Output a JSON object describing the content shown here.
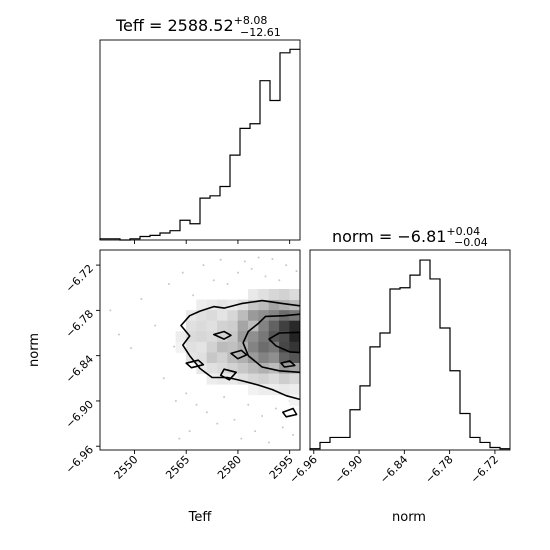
{
  "figure": {
    "background": "#ffffff",
    "line_color": "#000000"
  },
  "chart_data": [
    {
      "panel": "teff-marginal",
      "type": "histogram",
      "title": {
        "prefix": "Teff = ",
        "value": "2588.52",
        "plus": "+8.08",
        "minus": "−12.61"
      },
      "xlim": [
        2540,
        2598
      ],
      "bin_edges": [
        2540.0,
        2542.9,
        2545.8,
        2548.7,
        2551.6,
        2554.5,
        2557.4,
        2560.3,
        2563.2,
        2566.1,
        2569.0,
        2571.9,
        2574.8,
        2577.7,
        2580.6,
        2583.5,
        2586.4,
        2589.3,
        2592.2,
        2595.1,
        2598.0
      ],
      "counts": [
        1,
        1,
        0,
        1,
        3,
        4,
        6,
        8,
        17,
        14,
        36,
        38,
        46,
        73,
        96,
        100,
        137,
        120,
        161,
        164
      ],
      "ylim": [
        0,
        172
      ],
      "show_x_ticklabels": false,
      "show_y_ticks": false
    },
    {
      "panel": "norm-marginal",
      "type": "histogram",
      "title": {
        "prefix": "norm = ",
        "value": "−6.81",
        "plus": "+0.04",
        "minus": "−0.04"
      },
      "xlim": [
        -6.965,
        -6.7
      ],
      "bin_edges": [
        -6.965,
        -6.95175,
        -6.9385,
        -6.92525,
        -6.912,
        -6.89875,
        -6.8855,
        -6.87225,
        -6.859,
        -6.84575,
        -6.8325,
        -6.81925,
        -6.806,
        -6.79275,
        -6.7795,
        -6.76625,
        -6.753,
        -6.73975,
        -6.7265,
        -6.71325,
        -6.7
      ],
      "counts": [
        1,
        6,
        10,
        10,
        32,
        51,
        82,
        93,
        128,
        129,
        139,
        151,
        136,
        97,
        63,
        29,
        10,
        6,
        2,
        1
      ],
      "ylim": [
        0,
        159
      ],
      "xlabel": "norm",
      "xticks": [
        -6.96,
        -6.9,
        -6.84,
        -6.78,
        -6.72
      ],
      "xtick_labels": [
        "−6.96",
        "−6.90",
        "−6.84",
        "−6.78",
        "−6.72"
      ],
      "show_y_ticks": false
    },
    {
      "panel": "joint",
      "type": "heatmap",
      "xlabel": "Teff",
      "ylabel": "norm",
      "xlim": [
        2540,
        2598
      ],
      "ylim": [
        -6.965,
        -6.7
      ],
      "xticks": [
        2550,
        2565,
        2580,
        2595
      ],
      "xtick_labels": [
        "2550",
        "2565",
        "2580",
        "2595"
      ],
      "yticks": [
        -6.96,
        -6.9,
        -6.84,
        -6.78,
        -6.72
      ],
      "ytick_labels": [
        "−6.96",
        "−6.90",
        "−6.84",
        "−6.78",
        "−6.72"
      ],
      "cells": [
        {
          "x": 2569.5,
          "y": -6.773,
          "v": 0.08
        },
        {
          "x": 2572.5,
          "y": -6.773,
          "v": 0.1
        },
        {
          "x": 2575.5,
          "y": -6.773,
          "v": 0.12
        },
        {
          "x": 2578.5,
          "y": -6.773,
          "v": 0.1
        },
        {
          "x": 2581.5,
          "y": -6.773,
          "v": 0.14
        },
        {
          "x": 2584.5,
          "y": -6.773,
          "v": 0.25
        },
        {
          "x": 2587.5,
          "y": -6.773,
          "v": 0.3
        },
        {
          "x": 2590.5,
          "y": -6.773,
          "v": 0.4
        },
        {
          "x": 2593.5,
          "y": -6.773,
          "v": 0.35
        },
        {
          "x": 2596.5,
          "y": -6.773,
          "v": 0.3
        },
        {
          "x": 2584.5,
          "y": -6.759,
          "v": 0.1
        },
        {
          "x": 2587.5,
          "y": -6.759,
          "v": 0.14
        },
        {
          "x": 2590.5,
          "y": -6.759,
          "v": 0.18
        },
        {
          "x": 2593.5,
          "y": -6.759,
          "v": 0.2
        },
        {
          "x": 2596.5,
          "y": -6.759,
          "v": 0.16
        },
        {
          "x": 2566.5,
          "y": -6.787,
          "v": 0.1
        },
        {
          "x": 2569.5,
          "y": -6.787,
          "v": 0.14
        },
        {
          "x": 2572.5,
          "y": -6.787,
          "v": 0.16
        },
        {
          "x": 2575.5,
          "y": -6.787,
          "v": 0.12
        },
        {
          "x": 2578.5,
          "y": -6.787,
          "v": 0.18
        },
        {
          "x": 2581.5,
          "y": -6.787,
          "v": 0.3
        },
        {
          "x": 2584.5,
          "y": -6.787,
          "v": 0.45
        },
        {
          "x": 2587.5,
          "y": -6.787,
          "v": 0.5
        },
        {
          "x": 2590.5,
          "y": -6.787,
          "v": 0.55
        },
        {
          "x": 2593.5,
          "y": -6.787,
          "v": 0.65
        },
        {
          "x": 2596.5,
          "y": -6.787,
          "v": 0.6
        },
        {
          "x": 2566.5,
          "y": -6.801,
          "v": 0.14
        },
        {
          "x": 2569.5,
          "y": -6.801,
          "v": 0.16
        },
        {
          "x": 2572.5,
          "y": -6.801,
          "v": 0.14
        },
        {
          "x": 2575.5,
          "y": -6.801,
          "v": 0.2
        },
        {
          "x": 2578.5,
          "y": -6.801,
          "v": 0.22
        },
        {
          "x": 2581.5,
          "y": -6.801,
          "v": 0.4
        },
        {
          "x": 2584.5,
          "y": -6.801,
          "v": 0.3
        },
        {
          "x": 2587.5,
          "y": -6.801,
          "v": 0.55
        },
        {
          "x": 2590.5,
          "y": -6.801,
          "v": 0.7
        },
        {
          "x": 2593.5,
          "y": -6.801,
          "v": 0.85
        },
        {
          "x": 2596.5,
          "y": -6.801,
          "v": 0.95
        },
        {
          "x": 2563.5,
          "y": -6.815,
          "v": 0.08
        },
        {
          "x": 2566.5,
          "y": -6.815,
          "v": 0.16
        },
        {
          "x": 2569.5,
          "y": -6.815,
          "v": 0.18
        },
        {
          "x": 2572.5,
          "y": -6.815,
          "v": 0.16
        },
        {
          "x": 2575.5,
          "y": -6.815,
          "v": 0.2
        },
        {
          "x": 2578.5,
          "y": -6.815,
          "v": 0.25
        },
        {
          "x": 2581.5,
          "y": -6.815,
          "v": 0.45
        },
        {
          "x": 2584.5,
          "y": -6.815,
          "v": 0.5
        },
        {
          "x": 2587.5,
          "y": -6.815,
          "v": 0.6
        },
        {
          "x": 2590.5,
          "y": -6.815,
          "v": 0.75
        },
        {
          "x": 2593.5,
          "y": -6.815,
          "v": 0.8
        },
        {
          "x": 2596.5,
          "y": -6.815,
          "v": 0.98
        },
        {
          "x": 2563.5,
          "y": -6.829,
          "v": 0.06
        },
        {
          "x": 2566.5,
          "y": -6.829,
          "v": 0.14
        },
        {
          "x": 2569.5,
          "y": -6.829,
          "v": 0.12
        },
        {
          "x": 2572.5,
          "y": -6.829,
          "v": 0.2
        },
        {
          "x": 2575.5,
          "y": -6.829,
          "v": 0.3
        },
        {
          "x": 2578.5,
          "y": -6.829,
          "v": 0.28
        },
        {
          "x": 2581.5,
          "y": -6.829,
          "v": 0.35
        },
        {
          "x": 2584.5,
          "y": -6.829,
          "v": 0.55
        },
        {
          "x": 2587.5,
          "y": -6.829,
          "v": 0.65
        },
        {
          "x": 2590.5,
          "y": -6.829,
          "v": 0.6
        },
        {
          "x": 2593.5,
          "y": -6.829,
          "v": 0.82
        },
        {
          "x": 2596.5,
          "y": -6.829,
          "v": 0.9
        },
        {
          "x": 2566.5,
          "y": -6.843,
          "v": 0.12
        },
        {
          "x": 2569.5,
          "y": -6.843,
          "v": 0.14
        },
        {
          "x": 2572.5,
          "y": -6.843,
          "v": 0.25
        },
        {
          "x": 2575.5,
          "y": -6.843,
          "v": 0.2
        },
        {
          "x": 2578.5,
          "y": -6.843,
          "v": 0.3
        },
        {
          "x": 2581.5,
          "y": -6.843,
          "v": 0.35
        },
        {
          "x": 2584.5,
          "y": -6.843,
          "v": 0.45
        },
        {
          "x": 2587.5,
          "y": -6.843,
          "v": 0.55
        },
        {
          "x": 2590.5,
          "y": -6.843,
          "v": 0.5
        },
        {
          "x": 2593.5,
          "y": -6.843,
          "v": 0.7
        },
        {
          "x": 2596.5,
          "y": -6.843,
          "v": 0.75
        },
        {
          "x": 2569.5,
          "y": -6.857,
          "v": 0.1
        },
        {
          "x": 2572.5,
          "y": -6.857,
          "v": 0.14
        },
        {
          "x": 2575.5,
          "y": -6.857,
          "v": 0.16
        },
        {
          "x": 2578.5,
          "y": -6.857,
          "v": 0.2
        },
        {
          "x": 2581.5,
          "y": -6.857,
          "v": 0.25
        },
        {
          "x": 2584.5,
          "y": -6.857,
          "v": 0.3
        },
        {
          "x": 2587.5,
          "y": -6.857,
          "v": 0.35
        },
        {
          "x": 2590.5,
          "y": -6.857,
          "v": 0.3
        },
        {
          "x": 2593.5,
          "y": -6.857,
          "v": 0.45
        },
        {
          "x": 2596.5,
          "y": -6.857,
          "v": 0.4
        },
        {
          "x": 2572.5,
          "y": -6.871,
          "v": 0.08
        },
        {
          "x": 2575.5,
          "y": -6.871,
          "v": 0.1
        },
        {
          "x": 2578.5,
          "y": -6.871,
          "v": 0.1
        },
        {
          "x": 2581.5,
          "y": -6.871,
          "v": 0.14
        },
        {
          "x": 2584.5,
          "y": -6.871,
          "v": 0.18
        },
        {
          "x": 2587.5,
          "y": -6.871,
          "v": 0.2
        },
        {
          "x": 2590.5,
          "y": -6.871,
          "v": 0.16
        },
        {
          "x": 2593.5,
          "y": -6.871,
          "v": 0.22
        },
        {
          "x": 2596.5,
          "y": -6.871,
          "v": 0.18
        },
        {
          "x": 2584.5,
          "y": -6.885,
          "v": 0.06
        },
        {
          "x": 2587.5,
          "y": -6.885,
          "v": 0.08
        },
        {
          "x": 2590.5,
          "y": -6.885,
          "v": 0.08
        },
        {
          "x": 2593.5,
          "y": -6.885,
          "v": 0.1
        },
        {
          "x": 2596.5,
          "y": -6.885,
          "v": 0.08
        },
        {
          "x": 2596.5,
          "y": -6.899,
          "v": 0.05
        }
      ],
      "points": [
        {
          "x": 2543.0,
          "y": -6.78
        },
        {
          "x": 2545.5,
          "y": -6.812
        },
        {
          "x": 2549.0,
          "y": -6.83
        },
        {
          "x": 2552.0,
          "y": -6.765
        },
        {
          "x": 2556.0,
          "y": -6.8
        },
        {
          "x": 2558.5,
          "y": -6.87
        },
        {
          "x": 2560.0,
          "y": -6.745
        },
        {
          "x": 2561.5,
          "y": -6.828
        },
        {
          "x": 2562.0,
          "y": -6.9
        },
        {
          "x": 2563.0,
          "y": -6.95
        },
        {
          "x": 2564.0,
          "y": -6.73
        },
        {
          "x": 2565.0,
          "y": -6.89
        },
        {
          "x": 2566.0,
          "y": -6.94
        },
        {
          "x": 2567.0,
          "y": -6.76
        },
        {
          "x": 2568.0,
          "y": -6.905
        },
        {
          "x": 2570.0,
          "y": -6.72
        },
        {
          "x": 2571.0,
          "y": -6.915
        },
        {
          "x": 2573.0,
          "y": -6.74
        },
        {
          "x": 2574.0,
          "y": -6.93
        },
        {
          "x": 2575.0,
          "y": -6.713
        },
        {
          "x": 2576.0,
          "y": -6.895
        },
        {
          "x": 2577.0,
          "y": -6.745
        },
        {
          "x": 2579.0,
          "y": -6.925
        },
        {
          "x": 2580.0,
          "y": -6.73
        },
        {
          "x": 2581.0,
          "y": -6.95
        },
        {
          "x": 2582.0,
          "y": -6.715
        },
        {
          "x": 2583.0,
          "y": -6.905
        },
        {
          "x": 2584.0,
          "y": -6.725
        },
        {
          "x": 2585.0,
          "y": -6.94
        },
        {
          "x": 2586.0,
          "y": -6.71
        },
        {
          "x": 2587.0,
          "y": -6.92
        },
        {
          "x": 2588.0,
          "y": -6.735
        },
        {
          "x": 2589.0,
          "y": -6.955
        },
        {
          "x": 2590.0,
          "y": -6.712
        },
        {
          "x": 2591.0,
          "y": -6.91
        },
        {
          "x": 2592.0,
          "y": -6.74
        },
        {
          "x": 2593.0,
          "y": -6.935
        },
        {
          "x": 2594.0,
          "y": -6.72
        },
        {
          "x": 2595.0,
          "y": -6.9
        },
        {
          "x": 2596.0,
          "y": -6.945
        },
        {
          "x": 2597.0,
          "y": -6.728
        }
      ],
      "contours": [
        {
          "level": "outer",
          "closed": false,
          "path": [
            [
              2598,
              -6.774
            ],
            [
              2593,
              -6.771
            ],
            [
              2587,
              -6.767
            ],
            [
              2581,
              -6.771
            ],
            [
              2576,
              -6.777
            ],
            [
              2573,
              -6.775
            ],
            [
              2569,
              -6.781
            ],
            [
              2566,
              -6.787
            ],
            [
              2563.5,
              -6.8
            ],
            [
              2566,
              -6.814
            ],
            [
              2564,
              -6.826
            ],
            [
              2566,
              -6.84
            ],
            [
              2569,
              -6.857
            ],
            [
              2572.5,
              -6.869
            ],
            [
              2577,
              -6.869
            ],
            [
              2581,
              -6.873
            ],
            [
              2586,
              -6.879
            ],
            [
              2590,
              -6.885
            ],
            [
              2594,
              -6.893
            ],
            [
              2598,
              -6.898
            ]
          ]
        },
        {
          "level": "inner",
          "closed": false,
          "path": [
            [
              2598,
              -6.785
            ],
            [
              2593.5,
              -6.787
            ],
            [
              2588,
              -6.788
            ],
            [
              2586,
              -6.797
            ],
            [
              2583,
              -6.808
            ],
            [
              2581.5,
              -6.823
            ],
            [
              2583,
              -6.84
            ],
            [
              2587,
              -6.855
            ],
            [
              2592,
              -6.86
            ],
            [
              2598,
              -6.862
            ]
          ]
        },
        {
          "level": "inner",
          "closed": true,
          "path": [
            [
              2598,
              -6.809
            ],
            [
              2592,
              -6.81
            ],
            [
              2589,
              -6.818
            ],
            [
              2591,
              -6.827
            ],
            [
              2595,
              -6.835
            ],
            [
              2598,
              -6.836
            ]
          ]
        },
        {
          "level": "island",
          "closed": true,
          "path": [
            [
              2573,
              -6.812
            ],
            [
              2576,
              -6.808
            ],
            [
              2578,
              -6.813
            ],
            [
              2576,
              -6.818
            ]
          ]
        },
        {
          "level": "island",
          "closed": true,
          "path": [
            [
              2578,
              -6.837
            ],
            [
              2581,
              -6.833
            ],
            [
              2582.5,
              -6.839
            ],
            [
              2580,
              -6.844
            ]
          ]
        },
        {
          "level": "island",
          "closed": true,
          "path": [
            [
              2576,
              -6.858
            ],
            [
              2579.5,
              -6.862
            ],
            [
              2577.5,
              -6.872
            ],
            [
              2575,
              -6.866
            ]
          ]
        },
        {
          "level": "island",
          "closed": true,
          "path": [
            [
              2565,
              -6.85
            ],
            [
              2568.5,
              -6.846
            ],
            [
              2570,
              -6.852
            ],
            [
              2566.5,
              -6.856
            ]
          ]
        },
        {
          "level": "island",
          "closed": true,
          "path": [
            [
              2592.5,
              -6.85
            ],
            [
              2595,
              -6.847
            ],
            [
              2596.5,
              -6.853
            ],
            [
              2593.5,
              -6.855
            ]
          ]
        },
        {
          "level": "island",
          "closed": true,
          "path": [
            [
              2593,
              -6.915
            ],
            [
              2596,
              -6.91
            ],
            [
              2597,
              -6.918
            ],
            [
              2594,
              -6.921
            ]
          ]
        }
      ]
    }
  ]
}
